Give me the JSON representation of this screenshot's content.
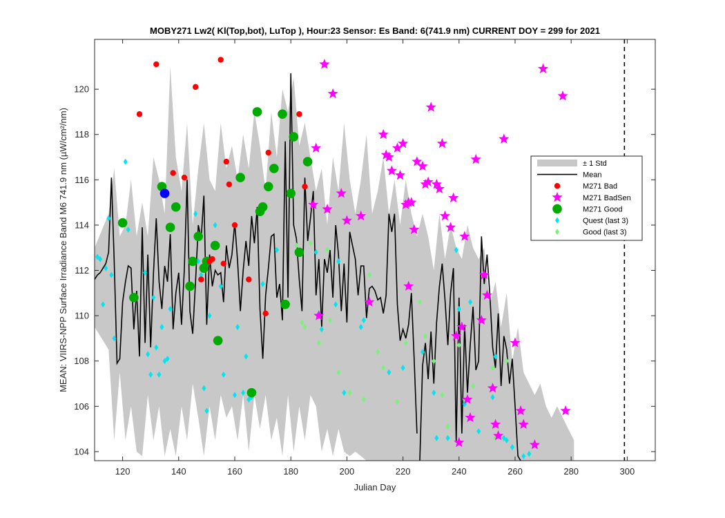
{
  "chart_data": {
    "type": "scatter",
    "title": "MOBY271   Lw2( Kl(Top,bot), LuTop ),   Hour:23 Sensor: Es Band: 6(741.9 nm)   CURRENT DOY = 299 for 2021",
    "xlabel": "Julian Day",
    "ylabel": "MEAN: VIIRS-NPP Surface Irradiance Band M6 741.9 nm (µW/cm²/nm)",
    "xlim": [
      110,
      310
    ],
    "ylim": [
      103.6,
      122.2
    ],
    "xticks": [
      120,
      140,
      160,
      180,
      200,
      220,
      240,
      260,
      280,
      300
    ],
    "yticks": [
      104,
      106,
      108,
      110,
      112,
      114,
      116,
      118,
      120
    ],
    "current_doy": 299,
    "grid": false,
    "legend_position": "right",
    "colors": {
      "std_band": "#c8c8c8",
      "mean": "#000000",
      "bad": "#ff0000",
      "badsen": "#ff00ff",
      "good": "#00aa00",
      "quest": "#00e5ee",
      "good_last3": "#7cf07c",
      "highlight": "#0000ff"
    },
    "legend": [
      {
        "label": "± 1 Std",
        "key": "std"
      },
      {
        "label": "Mean",
        "key": "mean"
      },
      {
        "label": "M271 Bad",
        "key": "bad"
      },
      {
        "label": "M271 BadSen",
        "key": "badsen"
      },
      {
        "label": "M271 Good",
        "key": "good"
      },
      {
        "label": "Quest (last 3)",
        "key": "quest"
      },
      {
        "label": "Good (last 3)",
        "key": "good_last3"
      }
    ],
    "mean_series": {
      "x": [
        110,
        111,
        112,
        113,
        114,
        115,
        116,
        117,
        118,
        119,
        120,
        121,
        122,
        123,
        124,
        125,
        126,
        127,
        128,
        129,
        130,
        131,
        132,
        133,
        134,
        135,
        136,
        137,
        138,
        139,
        140,
        141,
        142,
        143,
        144,
        145,
        146,
        147,
        148,
        149,
        150,
        151,
        152,
        153,
        154,
        155,
        156,
        157,
        158,
        159,
        160,
        161,
        162,
        163,
        164,
        165,
        166,
        167,
        168,
        169,
        170,
        171,
        172,
        173,
        174,
        175,
        176,
        177,
        178,
        179,
        180,
        181,
        182,
        183,
        184,
        185,
        186,
        187,
        188,
        189,
        190,
        191,
        192,
        193,
        194,
        195,
        196,
        197,
        198,
        199,
        200,
        201,
        202,
        203,
        204,
        205,
        206,
        207,
        208,
        209,
        210,
        211,
        212,
        213,
        214,
        215,
        216,
        217,
        218,
        219,
        220,
        221,
        222,
        223,
        224,
        225,
        226,
        227,
        228,
        229,
        230,
        231,
        232,
        233,
        234,
        235,
        236,
        237,
        238,
        239,
        240,
        241,
        242,
        243,
        244,
        245,
        246,
        247,
        248,
        249,
        250,
        251,
        252,
        253,
        254,
        255,
        256,
        257,
        258,
        259,
        260,
        261,
        262
      ],
      "y": [
        111.6,
        111.8,
        111.9,
        112.1,
        112.3,
        112.8,
        116.1,
        112.4,
        107.9,
        108.1,
        110.6,
        111.5,
        112.2,
        112.1,
        109.4,
        111.1,
        108.2,
        113.9,
        108.8,
        112.7,
        108.6,
        111.9,
        114.3,
        111.5,
        110.3,
        112.2,
        111.5,
        113.6,
        109.4,
        111.0,
        111.9,
        109.6,
        112.0,
        116.0,
        110.2,
        109.2,
        111.5,
        114.0,
        113.4,
        115.3,
        109.6,
        112.7,
        111.3,
        112.0,
        111.8,
        111.9,
        110.6,
        113.1,
        112.1,
        112.7,
        114.1,
        112.4,
        110.2,
        112.0,
        113.3,
        112.2,
        114.4,
        113.2,
        114.8,
        110.3,
        108.1,
        110.9,
        112.1,
        113.5,
        113.6,
        110.8,
        111.4,
        109.8,
        117.7,
        110.8,
        120.7,
        114.0,
        113.4,
        111.6,
        110.2,
        116.1,
        113.3,
        114.3,
        115.5,
        110.9,
        112.5,
        109.5,
        112.5,
        111.9,
        112.9,
        110.8,
        114.0,
        112.7,
        110.2,
        112.3,
        109.7,
        113.7,
        113.1,
        112.5,
        110.9,
        112.2,
        112.2,
        109.9,
        111.2,
        111.3,
        111.1,
        110.7,
        110.8,
        110.1,
        110.9,
        114.5,
        113.7,
        114.5,
        110.5,
        108.9,
        109.4,
        109.0,
        109.6,
        111.0,
        108.1,
        104.8,
        103.6,
        103.6,
        103.6,
        103.6,
        103.6,
        103.6,
        103.6,
        103.6,
        103.6,
        103.6,
        103.6,
        103.6,
        103.6,
        103.6,
        103.6,
        103.6,
        103.6,
        103.6,
        103.6,
        103.6,
        103.6,
        103.6,
        103.6,
        103.6,
        103.6,
        103.6,
        103.6,
        103.6,
        103.6,
        103.6,
        103.6,
        103.6,
        103.6,
        103.6,
        103.6,
        103.6,
        103.6
      ],
      "tail_x": [
        226,
        227,
        228,
        229,
        230,
        231,
        232,
        233,
        234,
        235,
        236,
        237,
        238,
        239,
        240,
        241,
        242,
        243,
        244,
        245,
        246,
        247,
        248,
        249,
        250,
        251,
        252,
        253,
        254,
        255,
        256,
        257,
        258,
        259,
        260,
        261,
        262
      ],
      "tail_y": [
        103.6,
        107.8,
        108.8,
        107.2,
        109.3,
        107.0,
        109.7,
        111.3,
        112.3,
        110.7,
        108.7,
        111.0,
        112.1,
        104.4,
        110.8,
        104.8,
        109.6,
        106.6,
        108.7,
        110.4,
        107.6,
        108.0,
        113.5,
        111.4,
        112.7,
        110.9,
        108.6,
        107.7,
        110.1,
        106.9,
        109.1,
        108.5,
        107.0,
        108.1,
        106.0,
        103.8,
        103.6
      ]
    },
    "std_band": {
      "x": [
        110,
        115,
        117,
        119,
        121,
        123,
        125,
        127,
        129,
        131,
        133,
        135,
        137,
        139,
        141,
        143,
        145,
        147,
        149,
        151,
        153,
        155,
        157,
        159,
        161,
        163,
        165,
        167,
        169,
        171,
        173,
        175,
        177,
        179,
        181,
        183,
        185,
        187,
        189,
        191,
        193,
        195,
        197,
        199,
        201,
        203,
        205,
        207,
        209,
        211,
        213,
        215,
        217,
        219,
        221,
        223,
        225,
        227,
        229,
        231,
        233,
        235,
        237,
        239,
        241,
        243,
        245,
        247,
        249,
        251,
        253,
        255,
        257,
        259,
        261,
        263,
        265,
        267,
        269,
        271,
        273,
        275,
        277,
        279,
        281
      ],
      "upper": [
        113.0,
        114.5,
        116.5,
        113.5,
        114.0,
        116.0,
        113.5,
        115.0,
        113.5,
        117.0,
        116.0,
        114.5,
        121.0,
        117.0,
        115.5,
        118.5,
        114.0,
        116.5,
        118.5,
        116.0,
        115.5,
        118.5,
        116.5,
        117.5,
        116.0,
        118.0,
        116.5,
        119.0,
        117.5,
        115.5,
        119.0,
        117.0,
        120.0,
        119.0,
        120.5,
        117.5,
        118.5,
        117.0,
        115.5,
        116.5,
        114.0,
        117.0,
        115.5,
        118.5,
        116.0,
        114.5,
        116.0,
        118.0,
        114.5,
        115.5,
        117.0,
        114.5,
        116.0,
        114.0,
        116.0,
        114.5,
        113.5,
        114.5,
        113.5,
        112.0,
        114.5,
        112.5,
        114.0,
        113.0,
        112.5,
        114.0,
        113.0,
        112.5,
        113.0,
        110.5,
        111.5,
        109.5,
        111.0,
        108.0,
        109.5,
        107.5,
        107.0,
        106.5,
        107.0,
        106.0,
        105.5,
        106.0,
        105.5,
        105.0,
        104.5
      ],
      "lower": [
        109.5,
        108.5,
        104.5,
        107.5,
        104.5,
        106.0,
        104.0,
        103.8,
        106.5,
        104.5,
        106.0,
        103.8,
        105.0,
        103.8,
        106.0,
        104.5,
        107.0,
        105.5,
        103.8,
        106.0,
        104.5,
        106.5,
        105.5,
        106.0,
        104.5,
        106.5,
        104.0,
        106.5,
        105.0,
        106.5,
        104.5,
        105.5,
        103.8,
        106.5,
        104.0,
        106.0,
        104.5,
        106.5,
        106.0,
        104.0,
        105.0,
        103.8,
        105.0,
        104.0,
        103.8,
        104.0,
        103.8,
        103.6,
        103.6,
        103.6,
        103.6,
        103.6,
        103.6,
        103.6,
        103.6,
        103.6,
        103.6,
        103.6,
        103.6,
        103.6,
        103.6,
        103.6,
        103.6,
        103.6,
        103.6,
        103.6,
        103.6,
        103.6,
        103.6,
        103.6,
        103.6,
        103.6,
        103.6,
        103.6,
        103.6,
        103.6,
        103.6,
        103.6,
        103.6,
        103.6,
        103.6,
        103.6,
        103.6,
        103.6,
        103.6
      ]
    },
    "bad_points": {
      "x": [
        126,
        132,
        138,
        142,
        146,
        148,
        151,
        152,
        155,
        156,
        157,
        158,
        160,
        165,
        171,
        172,
        183,
        185
      ],
      "y": [
        118.9,
        121.1,
        116.3,
        116.1,
        120.1,
        111.6,
        112.4,
        112.5,
        121.3,
        112.3,
        116.8,
        115.8,
        114.0,
        111.6,
        110.1,
        117.2,
        118.9,
        115.7
      ]
    },
    "highlight_points": {
      "x": [
        135
      ],
      "y": [
        115.4
      ]
    },
    "badsen_points": {
      "x": [
        188,
        189,
        190,
        192,
        193,
        195,
        198,
        200,
        205,
        208,
        213,
        214,
        215,
        216,
        218,
        219,
        220,
        221,
        222,
        222,
        223,
        224,
        225,
        227,
        228,
        229,
        230,
        232,
        233,
        234,
        235,
        237,
        238,
        239,
        240,
        241,
        242,
        243,
        244,
        246,
        248,
        249,
        250,
        252,
        253,
        254,
        256,
        260,
        262,
        263,
        267,
        270,
        277,
        278
      ],
      "y": [
        114.9,
        117.4,
        110.0,
        121.1,
        114.7,
        119.8,
        115.4,
        114.2,
        114.4,
        110.6,
        118.0,
        117.1,
        117.0,
        116.4,
        117.4,
        116.2,
        117.6,
        114.9,
        115.0,
        111.3,
        115.0,
        113.8,
        116.8,
        116.6,
        115.8,
        115.9,
        119.2,
        115.8,
        115.6,
        117.6,
        114.4,
        113.9,
        115.2,
        109.1,
        104.4,
        109.5,
        113.5,
        106.3,
        105.5,
        116.9,
        109.8,
        111.8,
        110.9,
        106.8,
        105.2,
        104.7,
        117.8,
        108.8,
        105.8,
        105.2,
        104.3,
        120.9,
        119.7,
        105.8
      ]
    },
    "good_points": {
      "x": [
        120,
        124,
        134,
        137,
        139,
        144,
        145,
        147,
        149,
        150,
        153,
        154,
        162,
        166,
        168,
        169,
        170,
        172,
        174,
        177,
        178,
        180,
        181,
        183,
        186
      ],
      "y": [
        114.1,
        110.8,
        115.7,
        113.9,
        114.8,
        111.3,
        112.4,
        113.5,
        112.1,
        112.4,
        113.1,
        108.9,
        116.1,
        106.6,
        119.0,
        114.6,
        114.8,
        115.7,
        116.5,
        118.9,
        110.5,
        115.4,
        117.9,
        112.8,
        116.8
      ]
    },
    "quest_points": {
      "x": [
        111,
        112,
        113,
        114,
        115,
        116,
        117,
        121,
        122,
        128,
        129,
        130,
        131,
        132,
        133,
        134,
        135,
        136,
        137,
        146,
        147,
        148,
        149,
        150,
        151,
        152,
        153,
        155,
        156,
        160,
        161,
        163,
        164,
        165,
        166,
        167,
        170,
        175,
        189,
        190,
        191,
        196,
        197,
        199,
        205,
        206,
        215,
        220,
        227,
        231,
        232,
        236,
        239,
        240,
        242,
        244,
        247,
        252,
        253,
        256,
        257,
        259,
        263,
        265
      ],
      "y": [
        112.6,
        112.5,
        110.5,
        112.1,
        114.3,
        111.8,
        109.0,
        116.8,
        113.8,
        111.9,
        108.3,
        107.4,
        110.8,
        108.6,
        107.4,
        109.5,
        108.0,
        108.1,
        110.3,
        114.5,
        112.4,
        111.8,
        106.8,
        105.8,
        110.0,
        112.5,
        114.0,
        111.3,
        107.4,
        106.5,
        109.5,
        106.6,
        108.2,
        106.3,
        106.4,
        106.6,
        111.4,
        112.9,
        112.8,
        110.1,
        109.4,
        110.5,
        112.4,
        106.6,
        109.5,
        109.8,
        107.5,
        107.7,
        108.4,
        106.6,
        104.6,
        104.6,
        112.9,
        110.3,
        106.1,
        110.6,
        104.9,
        106.4,
        108.2,
        104.6,
        104.5,
        104.2,
        103.8,
        103.9
      ]
    },
    "goodlast3_points": {
      "x": [
        182,
        184,
        185,
        187,
        190,
        193,
        194,
        197,
        201,
        206,
        208,
        211,
        213,
        218,
        221,
        226,
        228,
        231,
        234,
        236,
        240,
        242,
        245,
        252,
        253,
        254,
        257
      ],
      "y": [
        113.1,
        109.7,
        109.5,
        113.2,
        108.8,
        112.9,
        109.8,
        107.5,
        106.6,
        106.3,
        111.8,
        108.4,
        107.7,
        106.2,
        108.8,
        110.6,
        109.1,
        108.0,
        106.5,
        105.1,
        108.7,
        106.3,
        106.9,
        107.7,
        104.6,
        104.7,
        108.0
      ]
    }
  }
}
